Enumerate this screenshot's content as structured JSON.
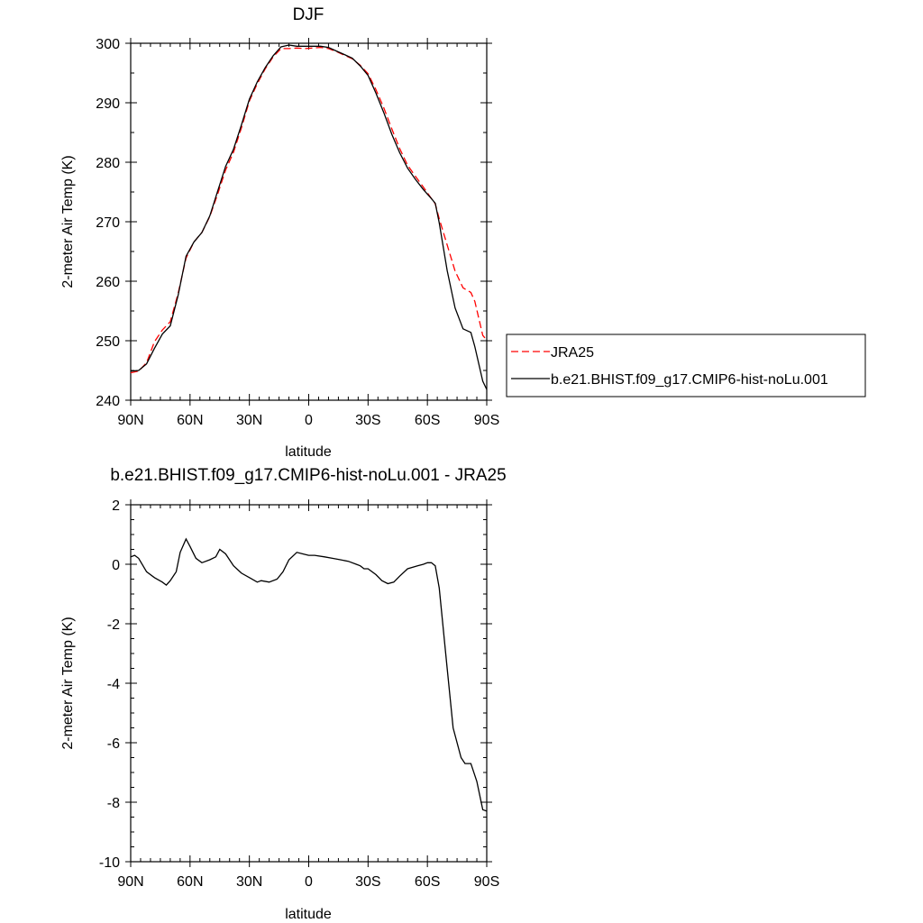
{
  "chart_data": [
    {
      "type": "line",
      "title": "DJF",
      "xlabel": "latitude",
      "ylabel": "2-meter Air Temp (K)",
      "xlim": [
        90,
        -90
      ],
      "ylim": [
        240,
        300
      ],
      "x_ticks": [
        {
          "value": 90,
          "label": "90N"
        },
        {
          "value": 60,
          "label": "60N"
        },
        {
          "value": 30,
          "label": "30N"
        },
        {
          "value": 0,
          "label": "0"
        },
        {
          "value": -30,
          "label": "30S"
        },
        {
          "value": -60,
          "label": "60S"
        },
        {
          "value": -90,
          "label": "90S"
        }
      ],
      "y_ticks": [
        240,
        250,
        260,
        270,
        280,
        290,
        300
      ],
      "legend_position": "right",
      "series": [
        {
          "name": "JRA25",
          "color": "#ff0000",
          "dash": "dashed",
          "points": [
            [
              90,
              244.6
            ],
            [
              86,
              244.9
            ],
            [
              82,
              246.3
            ],
            [
              78,
              249.8
            ],
            [
              74,
              251.8
            ],
            [
              70,
              253.2
            ],
            [
              66,
              258.0
            ],
            [
              62,
              263.9
            ],
            [
              58,
              266.6
            ],
            [
              54,
              268.2
            ],
            [
              50,
              270.9
            ],
            [
              46,
              274.7
            ],
            [
              42,
              278.7
            ],
            [
              38,
              281.7
            ],
            [
              34,
              285.8
            ],
            [
              30,
              290.3
            ],
            [
              26,
              293.2
            ],
            [
              22,
              295.7
            ],
            [
              18,
              297.7
            ],
            [
              14,
              299.1
            ],
            [
              10,
              299.1
            ],
            [
              6,
              299.2
            ],
            [
              2,
              299.1
            ],
            [
              -2,
              299.2
            ],
            [
              -6,
              299.3
            ],
            [
              -10,
              299.1
            ],
            [
              -14,
              298.6
            ],
            [
              -18,
              298.0
            ],
            [
              -22,
              297.4
            ],
            [
              -26,
              296.3
            ],
            [
              -30,
              294.9
            ],
            [
              -34,
              292.2
            ],
            [
              -38,
              289.1
            ],
            [
              -42,
              285.6
            ],
            [
              -46,
              282.3
            ],
            [
              -50,
              279.5
            ],
            [
              -54,
              277.6
            ],
            [
              -58,
              275.8
            ],
            [
              -62,
              273.9
            ],
            [
              -64,
              273.0
            ],
            [
              -66,
              270.5
            ],
            [
              -70,
              266.1
            ],
            [
              -74,
              261.7
            ],
            [
              -78,
              258.9
            ],
            [
              -82,
              258.1
            ],
            [
              -84,
              256.6
            ],
            [
              -88,
              250.9
            ],
            [
              -90,
              250.1
            ]
          ]
        },
        {
          "name": "b.e21.BHIST.f09_g17.CMIP6-hist-noLu.001",
          "color": "#000000",
          "dash": "solid",
          "points": [
            [
              90,
              244.9
            ],
            [
              86,
              245.0
            ],
            [
              82,
              246.1
            ],
            [
              78,
              248.7
            ],
            [
              74,
              251.1
            ],
            [
              70,
              252.5
            ],
            [
              66,
              257.7
            ],
            [
              62,
              264.2
            ],
            [
              58,
              266.6
            ],
            [
              54,
              268.2
            ],
            [
              50,
              271.0
            ],
            [
              46,
              275.2
            ],
            [
              42,
              279.3
            ],
            [
              38,
              282.2
            ],
            [
              34,
              286.3
            ],
            [
              30,
              290.6
            ],
            [
              26,
              293.5
            ],
            [
              22,
              295.9
            ],
            [
              18,
              297.9
            ],
            [
              14,
              299.4
            ],
            [
              10,
              299.7
            ],
            [
              6,
              299.5
            ],
            [
              2,
              299.5
            ],
            [
              -2,
              299.5
            ],
            [
              -6,
              299.5
            ],
            [
              -10,
              299.3
            ],
            [
              -14,
              298.7
            ],
            [
              -18,
              298.1
            ],
            [
              -22,
              297.5
            ],
            [
              -26,
              296.2
            ],
            [
              -30,
              294.6
            ],
            [
              -34,
              291.6
            ],
            [
              -38,
              288.3
            ],
            [
              -42,
              284.7
            ],
            [
              -46,
              281.6
            ],
            [
              -50,
              279.0
            ],
            [
              -54,
              277.1
            ],
            [
              -58,
              275.4
            ],
            [
              -62,
              273.9
            ],
            [
              -64,
              273.1
            ],
            [
              -66,
              269.8
            ],
            [
              -70,
              261.8
            ],
            [
              -74,
              255.5
            ],
            [
              -78,
              252.0
            ],
            [
              -82,
              251.4
            ],
            [
              -84,
              249.0
            ],
            [
              -88,
              243.2
            ],
            [
              -90,
              241.8
            ]
          ]
        }
      ]
    },
    {
      "type": "line",
      "title": "b.e21.BHIST.f09_g17.CMIP6-hist-noLu.001 - JRA25",
      "xlabel": "latitude",
      "ylabel": "2-meter Air Temp (K)",
      "xlim": [
        90,
        -90
      ],
      "ylim": [
        -10,
        2
      ],
      "x_ticks": [
        {
          "value": 90,
          "label": "90N"
        },
        {
          "value": 60,
          "label": "60N"
        },
        {
          "value": 30,
          "label": "30N"
        },
        {
          "value": 0,
          "label": "0"
        },
        {
          "value": -30,
          "label": "30S"
        },
        {
          "value": -60,
          "label": "60S"
        },
        {
          "value": -90,
          "label": "90S"
        }
      ],
      "y_ticks": [
        -10,
        -8,
        -6,
        -4,
        -2,
        0,
        2
      ],
      "series": [
        {
          "color": "#000000",
          "dash": "solid",
          "points": [
            [
              90,
              0.25
            ],
            [
              88,
              0.3
            ],
            [
              86,
              0.2
            ],
            [
              82,
              -0.25
            ],
            [
              78,
              -0.45
            ],
            [
              74,
              -0.6
            ],
            [
              72,
              -0.7
            ],
            [
              70,
              -0.55
            ],
            [
              67,
              -0.25
            ],
            [
              65,
              0.4
            ],
            [
              62,
              0.85
            ],
            [
              60,
              0.6
            ],
            [
              57,
              0.2
            ],
            [
              54,
              0.05
            ],
            [
              50,
              0.15
            ],
            [
              47,
              0.25
            ],
            [
              45,
              0.5
            ],
            [
              42,
              0.35
            ],
            [
              38,
              -0.05
            ],
            [
              34,
              -0.3
            ],
            [
              30,
              -0.45
            ],
            [
              26,
              -0.6
            ],
            [
              24,
              -0.55
            ],
            [
              20,
              -0.6
            ],
            [
              16,
              -0.5
            ],
            [
              13,
              -0.25
            ],
            [
              10,
              0.15
            ],
            [
              6,
              0.4
            ],
            [
              3,
              0.35
            ],
            [
              0,
              0.3
            ],
            [
              -3,
              0.3
            ],
            [
              -8,
              0.25
            ],
            [
              -12,
              0.2
            ],
            [
              -16,
              0.15
            ],
            [
              -20,
              0.1
            ],
            [
              -24,
              0.0
            ],
            [
              -26,
              -0.05
            ],
            [
              -28,
              -0.15
            ],
            [
              -30,
              -0.15
            ],
            [
              -34,
              -0.35
            ],
            [
              -37,
              -0.55
            ],
            [
              -40,
              -0.65
            ],
            [
              -43,
              -0.6
            ],
            [
              -46,
              -0.4
            ],
            [
              -50,
              -0.15
            ],
            [
              -55,
              -0.05
            ],
            [
              -58,
              0.0
            ],
            [
              -60,
              0.05
            ],
            [
              -62,
              0.05
            ],
            [
              -64,
              -0.05
            ],
            [
              -66,
              -0.8
            ],
            [
              -70,
              -3.5
            ],
            [
              -73,
              -5.5
            ],
            [
              -77,
              -6.5
            ],
            [
              -79,
              -6.7
            ],
            [
              -82,
              -6.7
            ],
            [
              -85,
              -7.3
            ],
            [
              -88,
              -8.25
            ],
            [
              -90,
              -8.3
            ]
          ]
        }
      ]
    }
  ]
}
